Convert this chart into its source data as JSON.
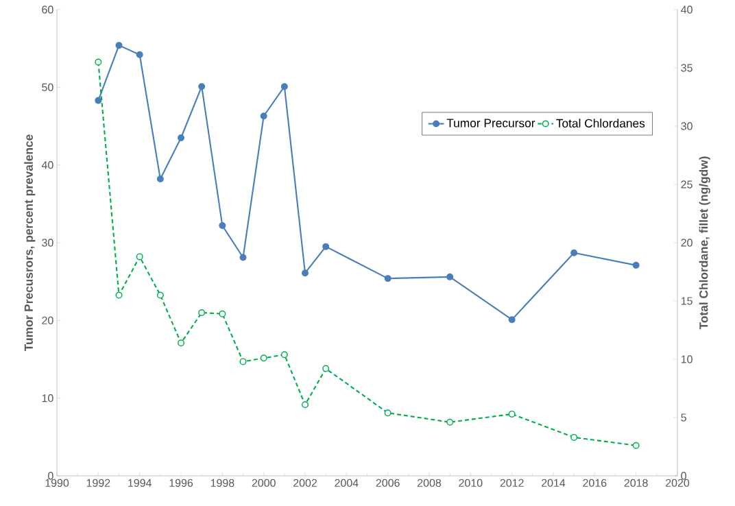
{
  "chart_data": {
    "type": "line",
    "ylabel": "Tumor Precusrors, percent prevalence",
    "y2label": "Total Chlordane, fillet (ng/gdw)",
    "x": [
      1992,
      1993,
      1994,
      1995,
      1996,
      1997,
      1998,
      1999,
      2000,
      2001,
      2002,
      2003,
      2006,
      2009,
      2012,
      2015,
      2018
    ],
    "series": [
      {
        "name": "Tumor Precursor",
        "color": "#4a7ebb",
        "marker": "circle",
        "line_style": "solid",
        "values": [
          48.3,
          55.4,
          54.2,
          38.2,
          43.5,
          50.1,
          32.2,
          28.1,
          46.3,
          50.1,
          26.1,
          29.5,
          25.4,
          25.6,
          20.1,
          28.7,
          27.1
        ]
      },
      {
        "name": "Total Chlordanes",
        "color": "#00b050",
        "marker": "circle",
        "line_style": "dashed",
        "axis": "y2",
        "values": [
          35.5,
          15.5,
          18.8,
          15.5,
          11.4,
          14.0,
          13.9,
          9.8,
          10.1,
          10.4,
          6.1,
          9.2,
          5.4,
          4.6,
          5.3,
          3.3,
          2.6
        ]
      }
    ],
    "xlim": [
      1990,
      2020
    ],
    "xticks": [
      1990,
      1992,
      1994,
      1996,
      1998,
      2000,
      2002,
      2004,
      2006,
      2008,
      2010,
      2012,
      2014,
      2016,
      2018,
      2020
    ],
    "ylim": [
      0,
      60
    ],
    "yticks": [
      0,
      10,
      20,
      30,
      40,
      50,
      60
    ],
    "y2lim": [
      0,
      40
    ],
    "y2ticks": [
      0,
      5,
      10,
      15,
      20,
      25,
      30,
      35,
      40
    ],
    "legend": "top right",
    "grid": false
  }
}
